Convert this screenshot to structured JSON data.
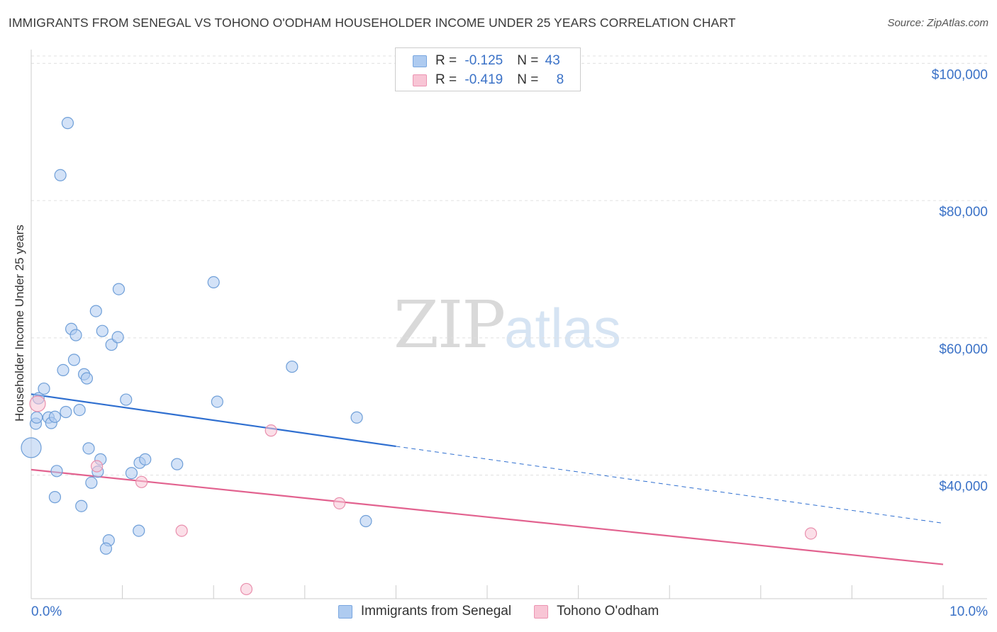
{
  "header": {
    "title": "IMMIGRANTS FROM SENEGAL VS TOHONO O'ODHAM HOUSEHOLDER INCOME UNDER 25 YEARS CORRELATION CHART",
    "source": "Source: ZipAtlas.com"
  },
  "watermark": {
    "zip": "ZIP",
    "atlas": "atlas"
  },
  "legend": {
    "rows": [
      {
        "r_label": "R = ",
        "r_value": "-0.125",
        "n_label": "N = ",
        "n_value": "43",
        "color": "#aecbf0",
        "border": "#7aa7e0"
      },
      {
        "r_label": "R = ",
        "r_value": "-0.419",
        "n_label": "N = ",
        "n_value": "8",
        "color": "#f8c5d5",
        "border": "#ec94b2"
      }
    ]
  },
  "colors": {
    "blue_fill": "#aecbf0",
    "blue_stroke": "#6f9fd8",
    "blue_line": "#2f6fd0",
    "pink_fill": "#f8c5d5",
    "pink_stroke": "#e98fad",
    "pink_line": "#e2628f",
    "grid": "#e0e0e0",
    "axis_text": "#3b72c7"
  },
  "chart_data": {
    "type": "scatter",
    "title": "IMMIGRANTS FROM SENEGAL VS TOHONO O'ODHAM HOUSEHOLDER INCOME UNDER 25 YEARS CORRELATION CHART",
    "xlabel": "",
    "ylabel": "Householder Income Under 25 years",
    "xlim": [
      0,
      10
    ],
    "ylim": [
      22000,
      102000
    ],
    "x_tick_labels": [
      "0.0%",
      "10.0%"
    ],
    "y_ticks": [
      40000,
      60000,
      80000,
      100000
    ],
    "y_tick_labels": [
      "$40,000",
      "$60,000",
      "$80,000",
      "$100,000"
    ],
    "grid": true,
    "legend_position": "bottom",
    "series": [
      {
        "name": "Immigrants from Senegal",
        "color": "#aecbf0",
        "trend": {
          "x": [
            0.0,
            4.0
          ],
          "y": [
            51800,
            44200
          ],
          "dashed_to": [
            10.0,
            33000
          ]
        },
        "points": [
          [
            0.4,
            91300
          ],
          [
            0.32,
            83700
          ],
          [
            0.08,
            51200
          ],
          [
            0.05,
            47500
          ],
          [
            0.0,
            44000
          ],
          [
            0.14,
            52600
          ],
          [
            0.19,
            48400
          ],
          [
            0.22,
            47600
          ],
          [
            0.26,
            48500
          ],
          [
            0.38,
            49200
          ],
          [
            0.53,
            49500
          ],
          [
            0.35,
            55300
          ],
          [
            0.47,
            56800
          ],
          [
            0.58,
            54700
          ],
          [
            0.61,
            54100
          ],
          [
            0.44,
            61300
          ],
          [
            0.49,
            60400
          ],
          [
            0.71,
            63900
          ],
          [
            0.78,
            61000
          ],
          [
            0.88,
            59000
          ],
          [
            0.95,
            60100
          ],
          [
            0.96,
            67100
          ],
          [
            1.04,
            51000
          ],
          [
            2.0,
            68100
          ],
          [
            2.04,
            50700
          ],
          [
            2.86,
            55800
          ],
          [
            3.57,
            48400
          ],
          [
            0.63,
            43900
          ],
          [
            0.76,
            42300
          ],
          [
            0.73,
            40500
          ],
          [
            0.66,
            38900
          ],
          [
            0.28,
            40600
          ],
          [
            0.26,
            36800
          ],
          [
            0.55,
            35500
          ],
          [
            1.1,
            40300
          ],
          [
            1.19,
            41800
          ],
          [
            1.25,
            42300
          ],
          [
            1.6,
            41600
          ],
          [
            1.18,
            31900
          ],
          [
            3.67,
            33300
          ],
          [
            0.85,
            30500
          ],
          [
            0.82,
            29300
          ],
          [
            0.06,
            48400
          ]
        ]
      },
      {
        "name": "Tohono O'odham",
        "color": "#f8c5d5",
        "trend": {
          "x": [
            0.0,
            10.0
          ],
          "y": [
            40800,
            27000
          ]
        },
        "points": [
          [
            0.07,
            50400
          ],
          [
            0.72,
            41300
          ],
          [
            1.21,
            39000
          ],
          [
            2.63,
            46500
          ],
          [
            1.65,
            31900
          ],
          [
            3.38,
            35900
          ],
          [
            2.36,
            23400
          ],
          [
            8.55,
            31500
          ]
        ]
      }
    ]
  }
}
